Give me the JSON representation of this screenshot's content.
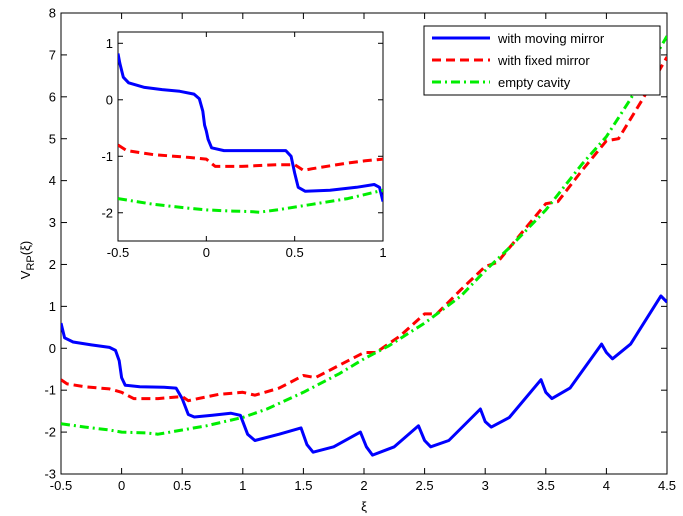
{
  "chart_data": [
    {
      "type": "line",
      "title": "",
      "xlabel": "ξ",
      "ylabel_main": "V",
      "ylabel_sub": "RP",
      "ylabel_arg": "(ξ)",
      "xlim": [
        -0.5,
        4.5
      ],
      "ylim": [
        -3,
        8
      ],
      "xticks": [
        "-0.5",
        "0",
        "0.5",
        "1",
        "1.5",
        "2",
        "2.5",
        "3",
        "3.5",
        "4",
        "4.5"
      ],
      "xtick_values": [
        -0.5,
        0,
        0.5,
        1,
        1.5,
        2,
        2.5,
        3,
        3.5,
        4,
        4.5
      ],
      "yticks": [
        "-3",
        "-2",
        "-1",
        "0",
        "1",
        "2",
        "3",
        "4",
        "5",
        "6",
        "7",
        "8"
      ],
      "ytick_values": [
        -3,
        -2,
        -1,
        0,
        1,
        2,
        3,
        4,
        5,
        6,
        7,
        8
      ],
      "grid": false,
      "legend_position": "top-right",
      "series": [
        {
          "name": "with moving mirror",
          "color": "#0000ff",
          "style": "solid",
          "points": [
            [
              -0.5,
              0.6
            ],
            [
              -0.47,
              0.25
            ],
            [
              -0.4,
              0.15
            ],
            [
              -0.25,
              0.08
            ],
            [
              -0.1,
              0.02
            ],
            [
              -0.05,
              -0.05
            ],
            [
              -0.02,
              -0.3
            ],
            [
              0,
              -0.7
            ],
            [
              0.03,
              -0.88
            ],
            [
              0.15,
              -0.92
            ],
            [
              0.35,
              -0.93
            ],
            [
              0.45,
              -0.95
            ],
            [
              0.5,
              -1.2
            ],
            [
              0.55,
              -1.58
            ],
            [
              0.6,
              -1.64
            ],
            [
              0.75,
              -1.6
            ],
            [
              0.9,
              -1.55
            ],
            [
              0.98,
              -1.6
            ],
            [
              1.04,
              -2.05
            ],
            [
              1.1,
              -2.2
            ],
            [
              1.3,
              -2.05
            ],
            [
              1.48,
              -1.9
            ],
            [
              1.53,
              -2.3
            ],
            [
              1.58,
              -2.48
            ],
            [
              1.75,
              -2.35
            ],
            [
              1.97,
              -2.0
            ],
            [
              2.02,
              -2.35
            ],
            [
              2.07,
              -2.55
            ],
            [
              2.25,
              -2.35
            ],
            [
              2.45,
              -1.85
            ],
            [
              2.5,
              -2.2
            ],
            [
              2.55,
              -2.35
            ],
            [
              2.7,
              -2.2
            ],
            [
              2.96,
              -1.45
            ],
            [
              3.0,
              -1.75
            ],
            [
              3.05,
              -1.88
            ],
            [
              3.2,
              -1.65
            ],
            [
              3.46,
              -0.75
            ],
            [
              3.5,
              -1.05
            ],
            [
              3.55,
              -1.2
            ],
            [
              3.7,
              -0.95
            ],
            [
              3.96,
              0.1
            ],
            [
              4.0,
              -0.1
            ],
            [
              4.05,
              -0.25
            ],
            [
              4.2,
              0.1
            ],
            [
              4.45,
              1.25
            ],
            [
              4.5,
              1.1
            ]
          ]
        },
        {
          "name": "with fixed mirror",
          "color": "#ff0000",
          "style": "dashed",
          "points": [
            [
              -0.5,
              -0.75
            ],
            [
              -0.45,
              -0.85
            ],
            [
              -0.3,
              -0.92
            ],
            [
              -0.1,
              -0.97
            ],
            [
              0,
              -1.05
            ],
            [
              0.1,
              -1.2
            ],
            [
              0.3,
              -1.2
            ],
            [
              0.5,
              -1.15
            ],
            [
              0.55,
              -1.25
            ],
            [
              0.6,
              -1.22
            ],
            [
              0.8,
              -1.1
            ],
            [
              1.0,
              -1.05
            ],
            [
              1.1,
              -1.12
            ],
            [
              1.3,
              -0.95
            ],
            [
              1.5,
              -0.65
            ],
            [
              1.6,
              -0.7
            ],
            [
              1.8,
              -0.4
            ],
            [
              2.0,
              -0.1
            ],
            [
              2.1,
              -0.1
            ],
            [
              2.3,
              0.3
            ],
            [
              2.5,
              0.82
            ],
            [
              2.6,
              0.82
            ],
            [
              2.8,
              1.4
            ],
            [
              3.0,
              1.95
            ],
            [
              3.1,
              2.05
            ],
            [
              3.3,
              2.75
            ],
            [
              3.5,
              3.45
            ],
            [
              3.6,
              3.5
            ],
            [
              3.8,
              4.25
            ],
            [
              4.0,
              4.95
            ],
            [
              4.1,
              5.0
            ],
            [
              4.3,
              5.95
            ],
            [
              4.5,
              6.95
            ]
          ]
        },
        {
          "name": "empty cavity",
          "color": "#00ee00",
          "style": "dashdot",
          "points": [
            [
              -0.5,
              -1.8
            ],
            [
              -0.3,
              -1.88
            ],
            [
              -0.1,
              -1.95
            ],
            [
              0,
              -2.0
            ],
            [
              0.2,
              -2.02
            ],
            [
              0.3,
              -2.05
            ],
            [
              0.5,
              -1.95
            ],
            [
              0.7,
              -1.85
            ],
            [
              1.0,
              -1.65
            ],
            [
              1.2,
              -1.45
            ],
            [
              1.5,
              -1.05
            ],
            [
              1.8,
              -0.6
            ],
            [
              2.0,
              -0.25
            ],
            [
              2.2,
              0.05
            ],
            [
              2.5,
              0.6
            ],
            [
              2.8,
              1.25
            ],
            [
              3.0,
              1.85
            ],
            [
              3.2,
              2.4
            ],
            [
              3.5,
              3.3
            ],
            [
              3.8,
              4.4
            ],
            [
              4.0,
              5.05
            ],
            [
              4.2,
              5.95
            ],
            [
              4.4,
              6.95
            ],
            [
              4.5,
              7.45
            ]
          ]
        }
      ]
    },
    {
      "type": "line",
      "title": "",
      "xlabel": "",
      "ylabel": "",
      "xlim": [
        -0.5,
        1
      ],
      "ylim": [
        -2.5,
        1.2
      ],
      "xticks": [
        "-0.5",
        "0",
        "0.5",
        "1"
      ],
      "xtick_values": [
        -0.5,
        0,
        0.5,
        1
      ],
      "yticks": [
        "1",
        "0",
        "-1",
        "-2"
      ],
      "ytick_values": [
        1,
        0,
        -1,
        -2
      ],
      "grid": false,
      "series": [
        {
          "color": "#0000ff",
          "style": "solid",
          "points": [
            [
              -0.5,
              0.82
            ],
            [
              -0.49,
              0.65
            ],
            [
              -0.47,
              0.4
            ],
            [
              -0.44,
              0.3
            ],
            [
              -0.35,
              0.22
            ],
            [
              -0.25,
              0.18
            ],
            [
              -0.15,
              0.15
            ],
            [
              -0.07,
              0.1
            ],
            [
              -0.04,
              0.02
            ],
            [
              -0.02,
              -0.2
            ],
            [
              -0.01,
              -0.45
            ],
            [
              0.0,
              -0.55
            ],
            [
              0.01,
              -0.7
            ],
            [
              0.03,
              -0.85
            ],
            [
              0.1,
              -0.9
            ],
            [
              0.3,
              -0.9
            ],
            [
              0.45,
              -0.9
            ],
            [
              0.48,
              -1.0
            ],
            [
              0.5,
              -1.3
            ],
            [
              0.52,
              -1.55
            ],
            [
              0.56,
              -1.62
            ],
            [
              0.7,
              -1.6
            ],
            [
              0.85,
              -1.55
            ],
            [
              0.95,
              -1.5
            ],
            [
              0.98,
              -1.55
            ],
            [
              1.0,
              -1.8
            ]
          ]
        },
        {
          "color": "#ff0000",
          "style": "dashed",
          "points": [
            [
              -0.5,
              -0.8
            ],
            [
              -0.45,
              -0.9
            ],
            [
              -0.3,
              -0.97
            ],
            [
              -0.1,
              -1.02
            ],
            [
              0.0,
              -1.05
            ],
            [
              0.05,
              -1.18
            ],
            [
              0.2,
              -1.18
            ],
            [
              0.4,
              -1.15
            ],
            [
              0.5,
              -1.15
            ],
            [
              0.55,
              -1.25
            ],
            [
              0.6,
              -1.22
            ],
            [
              0.8,
              -1.12
            ],
            [
              0.9,
              -1.08
            ],
            [
              1.0,
              -1.05
            ]
          ]
        },
        {
          "color": "#00ee00",
          "style": "dashdot",
          "points": [
            [
              -0.5,
              -1.75
            ],
            [
              -0.3,
              -1.85
            ],
            [
              -0.1,
              -1.92
            ],
            [
              0.0,
              -1.95
            ],
            [
              0.15,
              -1.97
            ],
            [
              0.25,
              -1.98
            ],
            [
              0.3,
              -1.99
            ],
            [
              0.4,
              -1.95
            ],
            [
              0.6,
              -1.85
            ],
            [
              0.8,
              -1.75
            ],
            [
              1.0,
              -1.6
            ]
          ]
        }
      ]
    }
  ]
}
